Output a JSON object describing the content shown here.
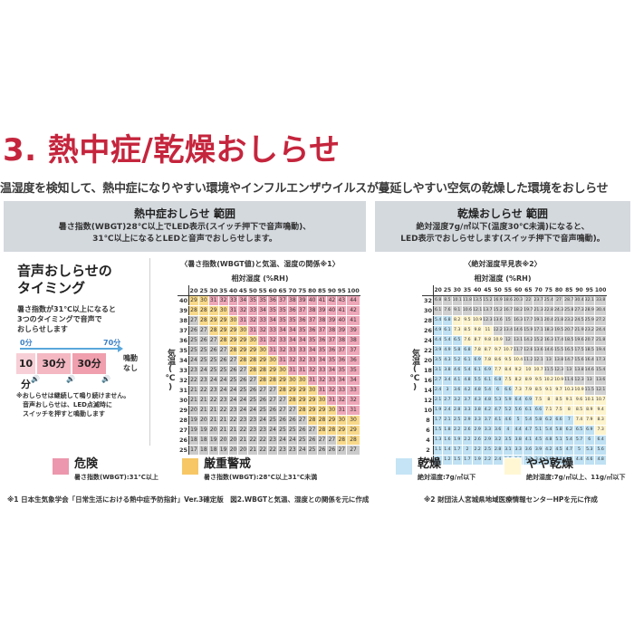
{
  "heading": "3. 熱中症/乾燥おしらせ",
  "intro": "温湿度を検知して、熱中症になりやすい環境やインフルエンザウイルスが蔓延しやすい空気の乾燥した環境をおしらせ",
  "heat_panel": {
    "title": "熱中症おしらせ 範囲",
    "desc_line1": "暑さ指数(WBGT)28℃以上でLED表示(スイッチ押下で音声鳴動)、",
    "desc_line2": "31℃以上になるとLEDと音声でおしらせします。"
  },
  "dry_panel": {
    "title": "乾燥おしらせ 範囲",
    "desc_line1": "絶対湿度7g/㎥以下(温度30℃未満)になると、",
    "desc_line2": "LED表示でおしらせします(スイッチ押下で音声鳴動)。"
  },
  "voice": {
    "title_line1": "音声おしらせの",
    "title_line2": "タイミング",
    "desc_line1": "暑さ指数が31℃以上になると",
    "desc_line2": "3つのタイミングで音声で",
    "desc_line3": "おしらせします",
    "t_start": "0分",
    "t_end": "70分",
    "boxes": [
      "10分",
      "30分",
      "30分"
    ],
    "no_sound_line1": "鳴動",
    "no_sound_line2": "なし",
    "note_line1": "※おしらせは継続して鳴り続けません。",
    "note_line2": "　音声おしらせは、LED点滅時に",
    "note_line3": "　スイッチを押すと鳴動します"
  },
  "wbgt_table": {
    "caption": "〈暑さ指数(WBGT値)と気温、湿度の関係※1〉",
    "col_title": "相対湿度 (%RH)",
    "row_title": "気温(℃)",
    "humidity": [
      20,
      25,
      30,
      35,
      40,
      45,
      50,
      55,
      60,
      65,
      70,
      75,
      80,
      85,
      90,
      95,
      100
    ],
    "temps": [
      40,
      39,
      38,
      37,
      36,
      35,
      34,
      33,
      32,
      31,
      30,
      29,
      28,
      27,
      26,
      25
    ],
    "rows": [
      [
        29,
        30,
        31,
        32,
        33,
        34,
        35,
        35,
        36,
        37,
        38,
        39,
        40,
        41,
        42,
        43,
        44
      ],
      [
        28,
        28,
        29,
        30,
        31,
        32,
        33,
        34,
        35,
        35,
        36,
        37,
        38,
        39,
        40,
        41,
        42
      ],
      [
        27,
        28,
        29,
        29,
        30,
        31,
        32,
        33,
        34,
        35,
        35,
        36,
        37,
        38,
        39,
        40,
        41
      ],
      [
        26,
        27,
        28,
        29,
        29,
        30,
        31,
        32,
        33,
        34,
        34,
        35,
        36,
        37,
        38,
        39,
        39
      ],
      [
        25,
        26,
        27,
        28,
        29,
        29,
        30,
        31,
        32,
        33,
        34,
        34,
        35,
        36,
        37,
        38,
        38
      ],
      [
        25,
        25,
        26,
        27,
        28,
        29,
        29,
        30,
        31,
        32,
        33,
        33,
        34,
        35,
        36,
        37,
        37
      ],
      [
        24,
        25,
        25,
        26,
        27,
        28,
        28,
        29,
        30,
        31,
        32,
        32,
        33,
        34,
        35,
        36,
        36
      ],
      [
        23,
        24,
        25,
        25,
        26,
        27,
        28,
        28,
        29,
        30,
        31,
        31,
        32,
        33,
        34,
        35,
        35
      ],
      [
        22,
        23,
        24,
        24,
        25,
        26,
        27,
        28,
        28,
        29,
        30,
        30,
        31,
        32,
        33,
        34,
        34
      ],
      [
        21,
        22,
        23,
        24,
        24,
        25,
        26,
        27,
        27,
        28,
        29,
        29,
        30,
        31,
        32,
        33,
        33
      ],
      [
        21,
        21,
        22,
        23,
        24,
        24,
        25,
        26,
        27,
        27,
        28,
        29,
        29,
        30,
        31,
        32,
        32
      ],
      [
        20,
        21,
        21,
        22,
        23,
        24,
        24,
        25,
        26,
        27,
        27,
        28,
        29,
        29,
        30,
        31,
        31
      ],
      [
        19,
        20,
        21,
        21,
        22,
        23,
        23,
        24,
        25,
        26,
        26,
        27,
        28,
        28,
        29,
        30,
        30
      ],
      [
        19,
        19,
        20,
        21,
        21,
        22,
        23,
        23,
        24,
        25,
        25,
        26,
        27,
        28,
        28,
        29,
        29
      ],
      [
        18,
        18,
        19,
        20,
        20,
        21,
        22,
        22,
        23,
        24,
        24,
        25,
        26,
        27,
        27,
        28,
        28
      ],
      [
        17,
        18,
        18,
        19,
        20,
        20,
        21,
        22,
        22,
        23,
        23,
        24,
        25,
        26,
        26,
        27,
        27
      ]
    ]
  },
  "abs_table": {
    "caption": "〈絶対湿度早見表※2〉",
    "col_title": "相対湿度 (%RH)",
    "row_title": "気温(℃)",
    "humidity": [
      20,
      25,
      30,
      35,
      40,
      45,
      50,
      55,
      60,
      65,
      70,
      75,
      80,
      85,
      90,
      95,
      100
    ],
    "temps": [
      32,
      30,
      28,
      26,
      24,
      22,
      20,
      18,
      16,
      14,
      12,
      10,
      8,
      6,
      4,
      2,
      0
    ],
    "rows": [
      [
        6.8,
        8.5,
        10.1,
        11.8,
        13.5,
        15.2,
        16.9,
        18.6,
        20.3,
        22.0,
        23.7,
        25.4,
        27.0,
        28.7,
        30.4,
        32.1,
        33.8
      ],
      [
        6.1,
        7.6,
        9.1,
        10.6,
        12.1,
        13.7,
        15.2,
        16.7,
        18.2,
        19.7,
        21.3,
        22.8,
        24.3,
        25.8,
        27.3,
        28.9,
        30.4
      ],
      [
        5.4,
        6.8,
        8.2,
        9.5,
        10.9,
        12.3,
        13.6,
        15.0,
        16.3,
        17.7,
        19.1,
        20.4,
        21.8,
        23.2,
        24.5,
        25.9,
        27.2
      ],
      [
        4.9,
        6.1,
        7.3,
        8.5,
        9.8,
        11.0,
        12.2,
        13.4,
        14.6,
        15.9,
        17.1,
        18.3,
        19.5,
        20.7,
        21.9,
        23.2,
        24.4
      ],
      [
        4.4,
        5.4,
        6.5,
        7.6,
        8.7,
        9.8,
        10.9,
        12.0,
        13.1,
        14.2,
        15.2,
        16.3,
        17.4,
        18.5,
        19.6,
        20.7,
        21.8
      ],
      [
        3.9,
        4.9,
        5.8,
        6.8,
        7.8,
        8.7,
        9.7,
        10.7,
        11.7,
        12.6,
        13.6,
        14.6,
        15.5,
        16.5,
        17.5,
        18.5,
        19.4
      ],
      [
        3.5,
        4.3,
        5.2,
        6.1,
        6.9,
        7.8,
        8.6,
        9.5,
        10.4,
        11.2,
        12.1,
        13.0,
        13.8,
        14.7,
        15.6,
        16.4,
        17.3
      ],
      [
        3.1,
        3.8,
        4.6,
        5.4,
        6.1,
        6.9,
        7.7,
        8.4,
        9.2,
        10.0,
        10.7,
        11.5,
        12.3,
        13.0,
        13.8,
        14.6,
        15.4
      ],
      [
        2.7,
        3.4,
        4.1,
        4.8,
        5.5,
        6.1,
        6.8,
        7.5,
        8.2,
        8.9,
        9.5,
        10.2,
        10.9,
        11.6,
        12.3,
        13.0,
        13.6
      ],
      [
        2.4,
        3.0,
        3.6,
        4.2,
        4.8,
        5.4,
        6.0,
        6.6,
        7.3,
        7.9,
        8.5,
        9.1,
        9.7,
        10.3,
        10.9,
        11.5,
        12.1
      ],
      [
        2.1,
        2.7,
        3.2,
        3.7,
        4.3,
        4.8,
        5.3,
        5.9,
        6.4,
        6.9,
        7.5,
        8.0,
        8.5,
        9.1,
        9.6,
        10.1,
        10.7
      ],
      [
        1.9,
        2.4,
        2.8,
        3.3,
        3.8,
        4.2,
        4.7,
        5.2,
        5.6,
        6.1,
        6.6,
        7.1,
        7.5,
        8.0,
        8.5,
        8.9,
        9.4
      ],
      [
        1.7,
        2.1,
        2.5,
        2.9,
        3.3,
        3.7,
        4.1,
        4.6,
        5.0,
        5.4,
        5.8,
        6.2,
        6.6,
        7.0,
        7.4,
        7.9,
        8.3
      ],
      [
        1.5,
        1.8,
        2.2,
        2.6,
        2.9,
        3.3,
        3.6,
        4.0,
        4.4,
        4.7,
        5.1,
        5.4,
        5.8,
        6.2,
        6.5,
        6.9,
        7.3
      ],
      [
        1.3,
        1.6,
        1.9,
        2.2,
        2.6,
        2.9,
        3.2,
        3.5,
        3.8,
        4.1,
        4.5,
        4.8,
        5.1,
        5.4,
        5.7,
        6.0,
        6.4
      ],
      [
        1.1,
        1.4,
        1.7,
        2.0,
        2.2,
        2.5,
        2.8,
        3.1,
        3.3,
        3.6,
        3.9,
        4.2,
        4.5,
        4.7,
        5.0,
        5.3,
        5.6
      ],
      [
        1.0,
        1.2,
        1.5,
        1.7,
        1.9,
        2.2,
        2.4,
        2.7,
        2.9,
        3.2,
        3.4,
        3.6,
        3.9,
        4.1,
        4.4,
        4.6,
        4.8
      ]
    ]
  },
  "legend": {
    "danger_label": "危険",
    "danger_sub": "暑さ指数(WBGT):31℃以上",
    "danger_color": "#ec97ad",
    "warn_label": "厳重警戒",
    "warn_sub": "暑さ指数(WBGT):28℃以上31℃未満",
    "warn_color": "#f7c765",
    "dry_label": "乾燥",
    "dry_sub": "絶対湿度:7g/㎥以下",
    "dry_color": "#c5e4f5",
    "slight_label": "やや乾燥",
    "slight_sub": "絶対湿度:7g/㎥以上、11g/㎥以下",
    "slight_color": "#fff7d4"
  },
  "footnotes": {
    "note1": "※1 日本生気象学会「日常生活における熱中症予防指針」Ver.3確定版　図2.WBGTと気温、湿度との関係を元に作成",
    "note2": "※2 財団法人宮城県地域医療情報センターHPを元に作成"
  },
  "colors": {
    "wbgt_low": "#cbcbcb",
    "wbgt_warn": "#f8d98a",
    "wbgt_danger": "#eea7b8",
    "abs_dry": "#bfe1f3",
    "abs_slight": "#fdf3cd",
    "abs_normal": "#d0d0d0"
  }
}
